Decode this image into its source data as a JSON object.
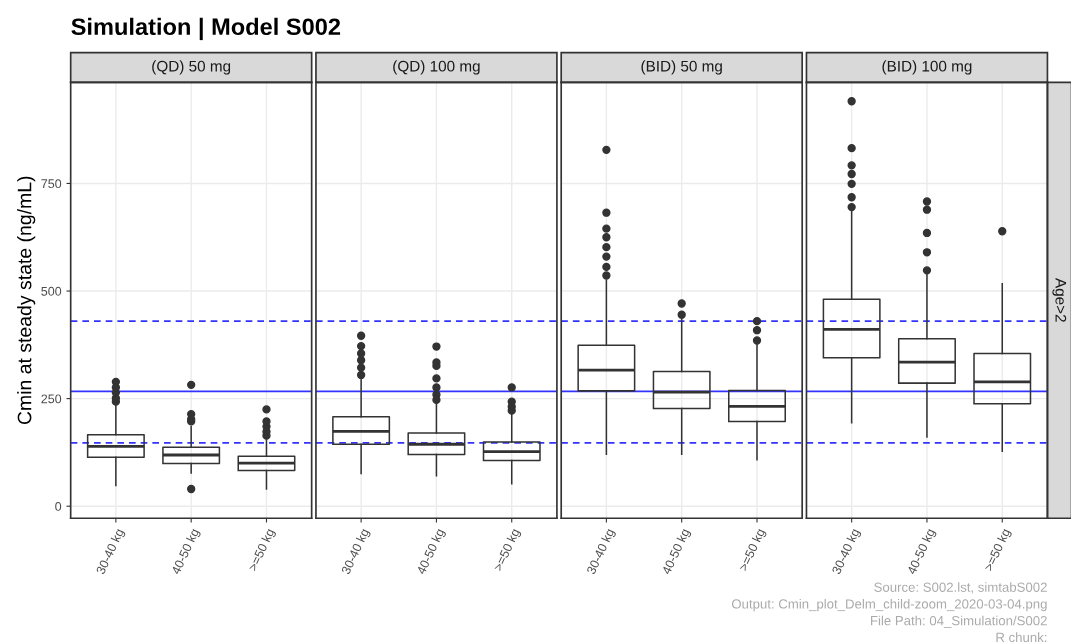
{
  "chart_data": [
    {
      "type": "box",
      "title": "Simulation | Model S002",
      "subtitle": "(QD) 50 mg",
      "ylabel": "Cmin at steady state (ng/mL)",
      "categories": [
        "30-40 kg",
        "40-50 kg",
        ">=50 kg"
      ],
      "ylim": [
        -28,
        985
      ],
      "yticks": [
        0,
        250,
        500,
        750
      ],
      "grid": true,
      "boxes": [
        {
          "low": 48,
          "q1": 114,
          "median": 139,
          "q3": 166,
          "high": 239,
          "outliers": [
            243,
            251,
            264,
            276,
            289
          ]
        },
        {
          "low": 77,
          "q1": 99,
          "median": 119,
          "q3": 137,
          "high": 185,
          "outliers": [
            40,
            197,
            202,
            214,
            282
          ]
        },
        {
          "low": 40,
          "q1": 83,
          "median": 100,
          "q3": 116,
          "high": 155,
          "outliers": [
            164,
            173,
            185,
            197,
            225
          ]
        }
      ],
      "ref_lines": [
        {
          "axis": "y",
          "value": 430,
          "color": "#3333ff",
          "line_style": "dashed"
        },
        {
          "axis": "y",
          "value": 267,
          "color": "#3333ff",
          "line_style": "solid"
        },
        {
          "axis": "y",
          "value": 147,
          "color": "#3333ff",
          "line_style": "dashed"
        }
      ]
    },
    {
      "type": "box",
      "subtitle": "(QD) 100 mg",
      "categories": [
        "30-40 kg",
        "40-50 kg",
        ">=50 kg"
      ],
      "ylim": [
        -28,
        985
      ],
      "yticks": [
        0,
        250,
        500,
        750
      ],
      "grid": true,
      "tick_labels": "x",
      "boxes": [
        {
          "low": 76,
          "q1": 144,
          "median": 174,
          "q3": 208,
          "high": 301,
          "outliers": [
            305,
            322,
            339,
            355,
            372,
            396
          ]
        },
        {
          "low": 71,
          "q1": 120,
          "median": 144,
          "q3": 170,
          "high": 243,
          "outliers": [
            247,
            259,
            276,
            297,
            326,
            334,
            371
          ]
        },
        {
          "low": 52,
          "q1": 106,
          "median": 127,
          "q3": 149,
          "high": 214,
          "outliers": [
            222,
            231,
            243,
            276
          ]
        }
      ],
      "ref_lines": [
        {
          "axis": "y",
          "value": 430,
          "color": "#3333ff",
          "line_style": "dashed"
        },
        {
          "axis": "y",
          "value": 267,
          "color": "#3333ff",
          "line_style": "solid"
        },
        {
          "axis": "y",
          "value": 147,
          "color": "#3333ff",
          "line_style": "dashed"
        }
      ]
    },
    {
      "type": "box",
      "subtitle": "(BID) 50 mg",
      "categories": [
        "30-40 kg",
        "40-50 kg",
        ">=50 kg"
      ],
      "ylim": [
        -28,
        985
      ],
      "yticks": [
        0,
        250,
        500,
        750
      ],
      "grid": true,
      "tick_labels": "x",
      "boxes": [
        {
          "low": 121,
          "q1": 268,
          "median": 316,
          "q3": 374,
          "high": 525,
          "outliers": [
            536,
            556,
            580,
            602,
            625,
            645,
            682,
            828
          ]
        },
        {
          "low": 121,
          "q1": 227,
          "median": 265,
          "q3": 313,
          "high": 436,
          "outliers": [
            445,
            471
          ]
        },
        {
          "low": 108,
          "q1": 197,
          "median": 232,
          "q3": 269,
          "high": 375,
          "outliers": [
            385,
            409,
            430
          ]
        }
      ],
      "ref_lines": [
        {
          "axis": "y",
          "value": 430,
          "color": "#3333ff",
          "line_style": "dashed"
        },
        {
          "axis": "y",
          "value": 267,
          "color": "#3333ff",
          "line_style": "solid"
        },
        {
          "axis": "y",
          "value": 147,
          "color": "#3333ff",
          "line_style": "dashed"
        }
      ]
    },
    {
      "type": "box",
      "subtitle": "(BID) 100 mg",
      "y2label": "Age>2",
      "categories": [
        "30-40 kg",
        "40-50 kg",
        ">=50 kg"
      ],
      "ylim": [
        -28,
        985
      ],
      "yticks": [
        0,
        250,
        500,
        750
      ],
      "grid": true,
      "tick_labels": "x",
      "boxes": [
        {
          "low": 194,
          "q1": 345,
          "median": 411,
          "q3": 481,
          "high": 687,
          "outliers": [
            695,
            718,
            749,
            772,
            792,
            832,
            941
          ]
        },
        {
          "low": 161,
          "q1": 286,
          "median": 335,
          "q3": 389,
          "high": 540,
          "outliers": [
            548,
            590,
            635,
            689,
            708
          ]
        },
        {
          "low": 128,
          "q1": 238,
          "median": 289,
          "q3": 355,
          "high": 517,
          "outliers": [
            639
          ]
        }
      ],
      "ref_lines": [
        {
          "axis": "y",
          "value": 430,
          "color": "#3333ff",
          "line_style": "dashed"
        },
        {
          "axis": "y",
          "value": 267,
          "color": "#3333ff",
          "line_style": "solid"
        },
        {
          "axis": "y",
          "value": 147,
          "color": "#3333ff",
          "line_style": "dashed"
        }
      ],
      "annotations": [
        "Source: S002.lst, simtabS002",
        "Output: Cmin_plot_Delm_child-zoom_2020-03-04.png",
        "File Path: 04_Simulation/S002",
        "R chunk:"
      ]
    }
  ]
}
